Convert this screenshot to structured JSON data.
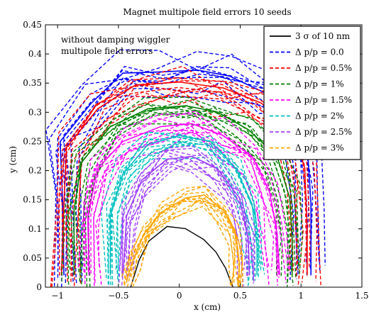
{
  "chart_data": {
    "type": "line",
    "title": "Magnet multipole field errors 10 seeds",
    "xlabel": "x (cm)",
    "ylabel": "y (cm)",
    "xlim": [
      -1.1,
      1.5
    ],
    "ylim": [
      0,
      0.45
    ],
    "xticks": [
      -1,
      -0.5,
      0,
      0.5,
      1,
      1.5
    ],
    "xtick_labels": [
      "−1",
      "−0.5",
      "0",
      "0.5",
      "1",
      "1.5"
    ],
    "yticks": [
      0,
      0.05,
      0.1,
      0.15,
      0.2,
      0.25,
      0.3,
      0.35,
      0.4,
      0.45
    ],
    "ytick_labels": [
      "0",
      "0.05",
      "0.1",
      "0.15",
      "0.2",
      "0.25",
      "0.3",
      "0.35",
      "0.4",
      "0.45"
    ],
    "grid": false,
    "legend_position": "top-right",
    "annotation": [
      "without damping wiggler",
      "multipole field errors"
    ],
    "series": [
      {
        "name": "3 σ of 10 nm",
        "color": "#000000",
        "dash": "solid",
        "points": [
          [
            -0.4,
            0
          ],
          [
            -0.33,
            0.05
          ],
          [
            -0.25,
            0.085
          ],
          [
            -0.1,
            0.112
          ],
          [
            0.05,
            0.108
          ],
          [
            0.2,
            0.088
          ],
          [
            0.3,
            0.065
          ],
          [
            0.38,
            0.035
          ],
          [
            0.44,
            0
          ]
        ]
      },
      {
        "name": "Δ p/p = 0.0",
        "color": "#0000ff",
        "dash": "dashed",
        "seed_count": 10,
        "spread": 0.022,
        "points": [
          [
            -0.92,
            0.02
          ],
          [
            -0.93,
            0.14
          ],
          [
            -0.95,
            0.245
          ],
          [
            -0.7,
            0.31
          ],
          [
            -0.45,
            0.36
          ],
          [
            -0.15,
            0.362
          ],
          [
            0.15,
            0.365
          ],
          [
            0.4,
            0.355
          ],
          [
            0.7,
            0.325
          ],
          [
            0.95,
            0.3
          ],
          [
            1.02,
            0.24
          ],
          [
            1.05,
            0.14
          ],
          [
            1.05,
            0.02
          ]
        ]
      },
      {
        "name": "Δ p/p = 0.5%",
        "color": "#ff0000",
        "dash": "dashed",
        "seed_count": 10,
        "spread": 0.02,
        "points": [
          [
            -0.94,
            0.02
          ],
          [
            -0.92,
            0.14
          ],
          [
            -0.9,
            0.235
          ],
          [
            -0.65,
            0.3
          ],
          [
            -0.35,
            0.34
          ],
          [
            0.0,
            0.345
          ],
          [
            0.35,
            0.335
          ],
          [
            0.65,
            0.31
          ],
          [
            0.9,
            0.27
          ],
          [
            1.0,
            0.2
          ],
          [
            1.02,
            0.1
          ],
          [
            1.02,
            0.02
          ]
        ]
      },
      {
        "name": "Δ p/p = 1%",
        "color": "#008000",
        "dash": "dashed",
        "seed_count": 10,
        "spread": 0.018,
        "points": [
          [
            -0.84,
            0.02
          ],
          [
            -0.84,
            0.13
          ],
          [
            -0.78,
            0.21
          ],
          [
            -0.55,
            0.27
          ],
          [
            -0.25,
            0.3
          ],
          [
            0.05,
            0.305
          ],
          [
            0.3,
            0.295
          ],
          [
            0.55,
            0.265
          ],
          [
            0.78,
            0.22
          ],
          [
            0.88,
            0.15
          ],
          [
            0.9,
            0.08
          ],
          [
            0.9,
            0.02
          ]
        ]
      },
      {
        "name": "Δ p/p = 1.5%",
        "color": "#ff00ff",
        "dash": "dashed",
        "seed_count": 10,
        "spread": 0.018,
        "points": [
          [
            -0.72,
            0.02
          ],
          [
            -0.73,
            0.12
          ],
          [
            -0.65,
            0.2
          ],
          [
            -0.45,
            0.245
          ],
          [
            -0.15,
            0.27
          ],
          [
            0.1,
            0.275
          ],
          [
            0.35,
            0.255
          ],
          [
            0.58,
            0.22
          ],
          [
            0.72,
            0.16
          ],
          [
            0.78,
            0.09
          ],
          [
            0.8,
            0.02
          ]
        ]
      },
      {
        "name": "Δ p/p = 2%",
        "color": "#00c0c0",
        "dash": "dashed",
        "seed_count": 10,
        "spread": 0.018,
        "points": [
          [
            -0.55,
            0.02
          ],
          [
            -0.55,
            0.12
          ],
          [
            -0.45,
            0.19
          ],
          [
            -0.25,
            0.24
          ],
          [
            0.0,
            0.255
          ],
          [
            0.25,
            0.245
          ],
          [
            0.45,
            0.2
          ],
          [
            0.58,
            0.14
          ],
          [
            0.62,
            0.07
          ],
          [
            0.62,
            0.02
          ]
        ]
      },
      {
        "name": "Δ p/p = 2.5%",
        "color": "#a040ff",
        "dash": "dashed",
        "seed_count": 10,
        "spread": 0.016,
        "points": [
          [
            -0.45,
            0.02
          ],
          [
            -0.42,
            0.12
          ],
          [
            -0.3,
            0.18
          ],
          [
            -0.1,
            0.215
          ],
          [
            0.1,
            0.22
          ],
          [
            0.3,
            0.2
          ],
          [
            0.48,
            0.15
          ],
          [
            0.55,
            0.08
          ],
          [
            0.56,
            0.02
          ]
        ]
      },
      {
        "name": "Δ p/p = 3%",
        "color": "#ffa500",
        "dash": "dashed",
        "seed_count": 10,
        "spread": 0.014,
        "points": [
          [
            -0.42,
            0.01
          ],
          [
            -0.38,
            0.04
          ],
          [
            -0.28,
            0.09
          ],
          [
            -0.15,
            0.125
          ],
          [
            0.05,
            0.15
          ],
          [
            0.2,
            0.155
          ],
          [
            0.35,
            0.13
          ],
          [
            0.45,
            0.09
          ],
          [
            0.48,
            0.04
          ],
          [
            0.47,
            0.0
          ]
        ]
      }
    ]
  }
}
